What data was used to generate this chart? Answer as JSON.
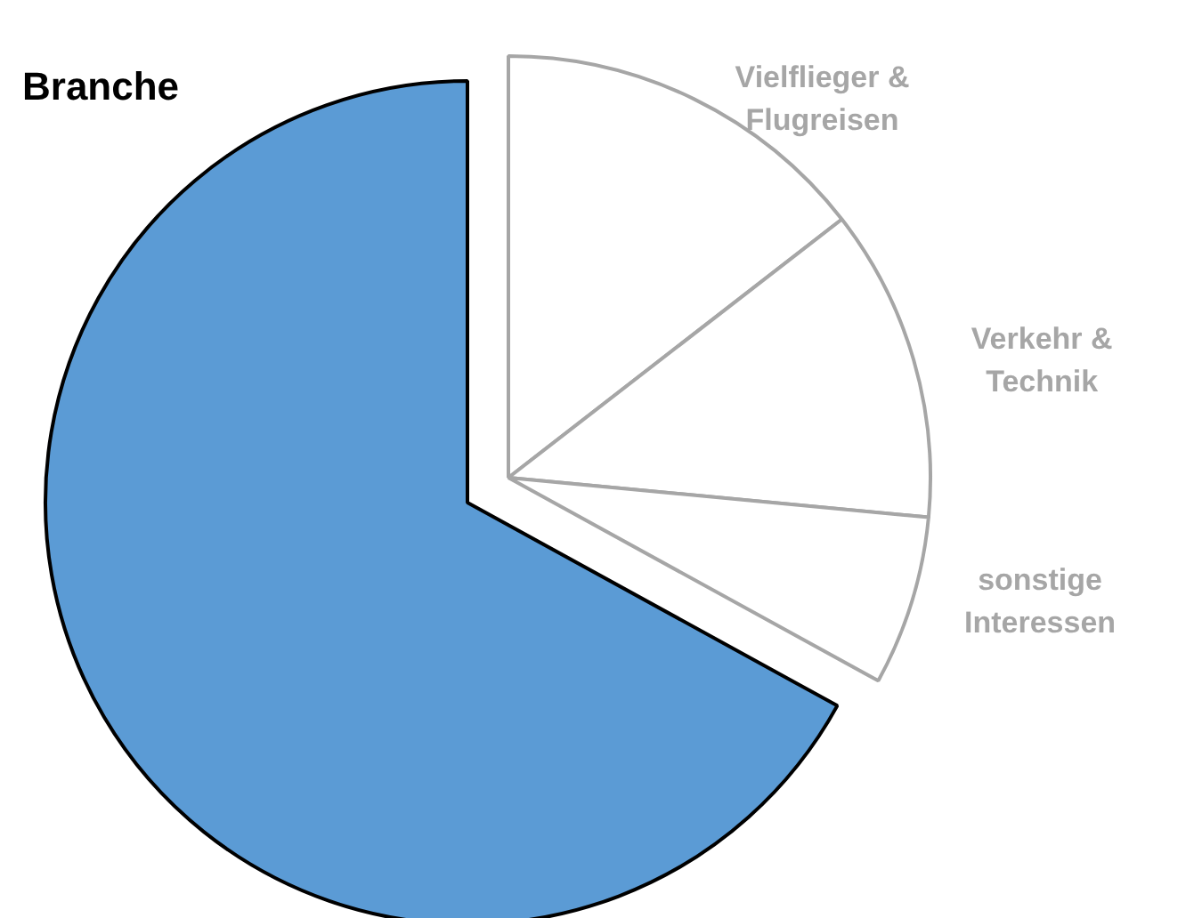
{
  "chart_data": {
    "type": "pie",
    "categories": [
      "Vielflieger & Flugreisen",
      "Verkehr & Technik",
      "sonstige Interessen",
      "Branche"
    ],
    "values": [
      14.5,
      12,
      6.5,
      67
    ],
    "colors": [
      "#ffffff",
      "#ffffff",
      "#ffffff",
      "#5b9bd5"
    ]
  }
}
